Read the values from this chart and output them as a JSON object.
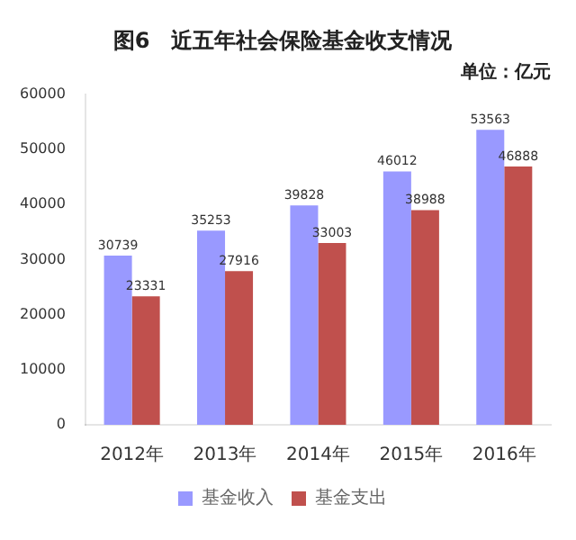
{
  "chart_data": {
    "type": "bar",
    "title": "图6　近五年社会保险基金收支情况",
    "subtitle": "单位：亿元",
    "categories": [
      "2012年",
      "2013年",
      "2014年",
      "2015年",
      "2016年"
    ],
    "series": [
      {
        "name": "基金收入",
        "color": "#9999ff",
        "values": [
          30739,
          35253,
          39828,
          46012,
          53563
        ]
      },
      {
        "name": "基金支出",
        "color": "#c0504d",
        "values": [
          23331,
          27916,
          33003,
          38988,
          46888
        ]
      }
    ],
    "ylim": [
      0,
      60000
    ],
    "yticks": [
      0,
      10000,
      20000,
      30000,
      40000,
      50000,
      60000
    ],
    "grid": false,
    "legend": "bottom",
    "data_labels": true
  }
}
